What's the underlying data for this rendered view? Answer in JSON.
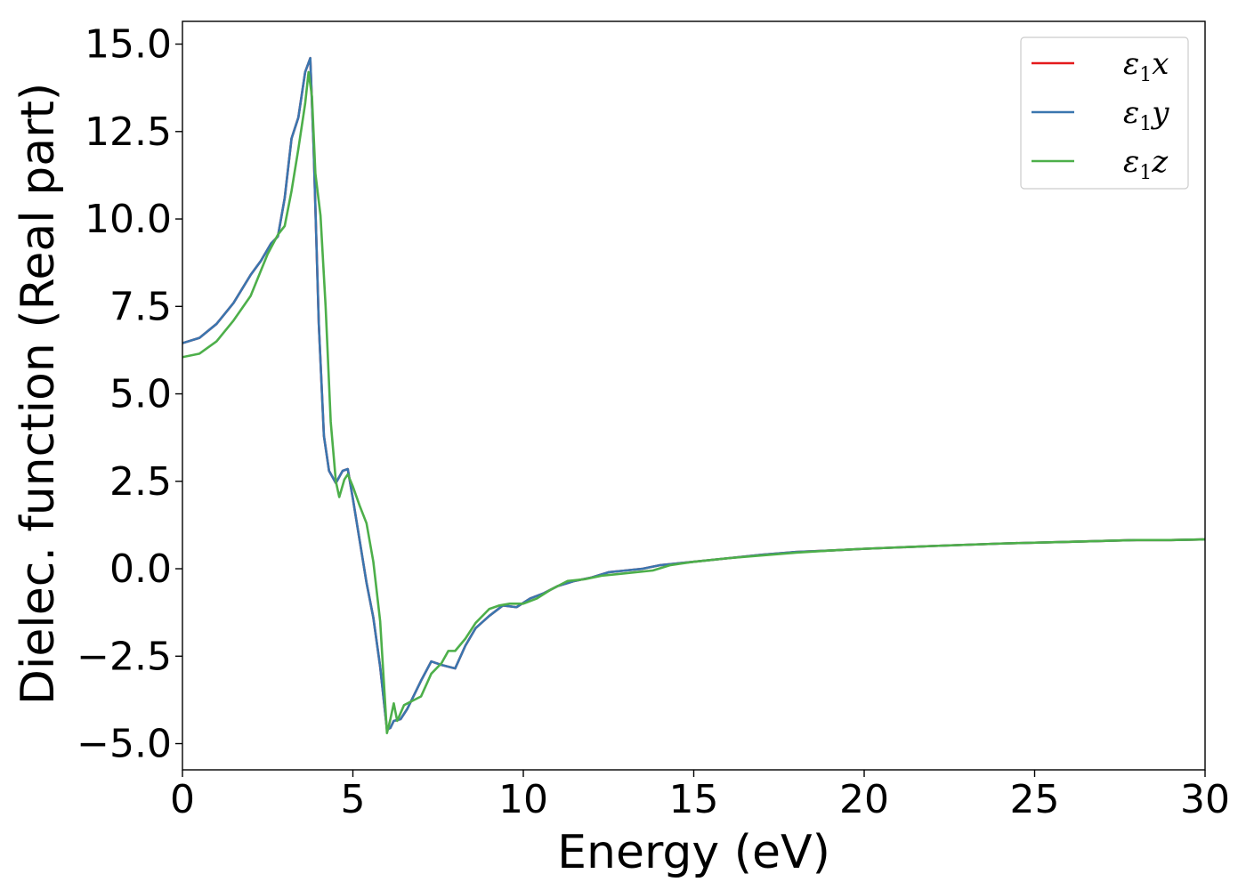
{
  "chart_data": {
    "type": "line",
    "xlabel": "Energy (eV)",
    "ylabel": "Dielec. function (Real part)",
    "xlim": [
      0,
      30
    ],
    "ylim": [
      -5.75,
      15.65
    ],
    "xticks": [
      0,
      5,
      10,
      15,
      20,
      25,
      30
    ],
    "xtick_labels": [
      "0",
      "5",
      "10",
      "15",
      "20",
      "25",
      "30"
    ],
    "yticks": [
      -5.0,
      -2.5,
      0.0,
      2.5,
      5.0,
      7.5,
      10.0,
      12.5,
      15.0
    ],
    "ytick_labels": [
      "−5.0",
      "−2.5",
      "0.0",
      "2.5",
      "5.0",
      "7.5",
      "10.0",
      "12.5",
      "15.0"
    ],
    "grid": false,
    "legend_position": "top-right",
    "series": [
      {
        "name": "ε1x",
        "legend_base": "ε",
        "legend_sub": "1",
        "legend_var": "x",
        "color": "#e41a1c",
        "x": [
          0,
          0.5,
          1.0,
          1.5,
          2.0,
          2.3,
          2.6,
          2.8,
          3.0,
          3.2,
          3.4,
          3.6,
          3.75,
          3.85,
          4.0,
          4.15,
          4.3,
          4.5,
          4.7,
          4.85,
          5.0,
          5.2,
          5.4,
          5.6,
          5.8,
          6.0,
          6.1,
          6.2,
          6.4,
          6.6,
          6.8,
          7.0,
          7.3,
          7.6,
          8.0,
          8.3,
          8.6,
          9.0,
          9.4,
          9.8,
          10.2,
          10.6,
          11.0,
          11.5,
          12.0,
          12.5,
          13.0,
          13.5,
          14.0,
          14.5,
          15.0,
          16.0,
          17.0,
          18.0,
          19.0,
          20.0,
          22.0,
          24.0,
          26.0,
          28.0,
          29.0,
          30.0
        ],
        "values": [
          6.45,
          6.6,
          7.0,
          7.6,
          8.4,
          8.8,
          9.3,
          9.5,
          10.6,
          12.3,
          12.9,
          14.2,
          14.6,
          12.0,
          7.0,
          3.8,
          2.8,
          2.45,
          2.8,
          2.85,
          2.0,
          0.8,
          -0.4,
          -1.4,
          -2.8,
          -4.6,
          -4.55,
          -4.35,
          -4.3,
          -4.0,
          -3.6,
          -3.2,
          -2.65,
          -2.75,
          -2.85,
          -2.2,
          -1.7,
          -1.35,
          -1.05,
          -1.1,
          -0.85,
          -0.7,
          -0.5,
          -0.35,
          -0.25,
          -0.1,
          -0.05,
          0.0,
          0.1,
          0.15,
          0.2,
          0.3,
          0.4,
          0.48,
          0.52,
          0.57,
          0.65,
          0.72,
          0.77,
          0.82,
          0.82,
          0.84
        ]
      },
      {
        "name": "ε1y",
        "legend_base": "ε",
        "legend_sub": "1",
        "legend_var": "y",
        "color": "#3a76af",
        "x": [
          0,
          0.5,
          1.0,
          1.5,
          2.0,
          2.3,
          2.6,
          2.8,
          3.0,
          3.2,
          3.4,
          3.6,
          3.75,
          3.85,
          4.0,
          4.15,
          4.3,
          4.5,
          4.7,
          4.85,
          5.0,
          5.2,
          5.4,
          5.6,
          5.8,
          6.0,
          6.1,
          6.2,
          6.4,
          6.6,
          6.8,
          7.0,
          7.3,
          7.6,
          8.0,
          8.3,
          8.6,
          9.0,
          9.4,
          9.8,
          10.2,
          10.6,
          11.0,
          11.5,
          12.0,
          12.5,
          13.0,
          13.5,
          14.0,
          14.5,
          15.0,
          16.0,
          17.0,
          18.0,
          19.0,
          20.0,
          22.0,
          24.0,
          26.0,
          28.0,
          29.0,
          30.0
        ],
        "values": [
          6.45,
          6.6,
          7.0,
          7.6,
          8.4,
          8.8,
          9.3,
          9.5,
          10.6,
          12.3,
          12.9,
          14.2,
          14.6,
          12.0,
          7.0,
          3.8,
          2.8,
          2.45,
          2.8,
          2.85,
          2.0,
          0.8,
          -0.4,
          -1.4,
          -2.8,
          -4.6,
          -4.55,
          -4.35,
          -4.3,
          -4.0,
          -3.6,
          -3.2,
          -2.65,
          -2.75,
          -2.85,
          -2.2,
          -1.7,
          -1.35,
          -1.05,
          -1.1,
          -0.85,
          -0.7,
          -0.5,
          -0.35,
          -0.25,
          -0.1,
          -0.05,
          0.0,
          0.1,
          0.15,
          0.2,
          0.3,
          0.4,
          0.48,
          0.52,
          0.57,
          0.65,
          0.72,
          0.77,
          0.82,
          0.82,
          0.84
        ]
      },
      {
        "name": "ε1z",
        "legend_base": "ε",
        "legend_sub": "1",
        "legend_var": "z",
        "color": "#4daf4a",
        "x": [
          0,
          0.5,
          1.0,
          1.5,
          2.0,
          2.5,
          2.8,
          3.0,
          3.2,
          3.4,
          3.6,
          3.7,
          3.8,
          3.9,
          4.05,
          4.2,
          4.35,
          4.5,
          4.6,
          4.75,
          4.85,
          5.0,
          5.2,
          5.4,
          5.6,
          5.8,
          6.0,
          6.1,
          6.2,
          6.3,
          6.5,
          6.8,
          7.0,
          7.3,
          7.6,
          7.8,
          8.0,
          8.3,
          8.6,
          9.0,
          9.3,
          9.6,
          10.0,
          10.4,
          10.8,
          11.3,
          11.8,
          12.3,
          12.8,
          13.3,
          13.8,
          14.3,
          15.0,
          16.0,
          17.0,
          18.0,
          19.0,
          20.0,
          22.0,
          24.0,
          26.0,
          28.0,
          29.0,
          30.0
        ],
        "values": [
          6.05,
          6.15,
          6.5,
          7.1,
          7.8,
          9.0,
          9.55,
          9.8,
          10.8,
          12.0,
          13.3,
          14.2,
          13.5,
          11.3,
          10.1,
          7.5,
          4.2,
          2.5,
          2.05,
          2.55,
          2.7,
          2.35,
          1.8,
          1.3,
          0.2,
          -1.5,
          -4.7,
          -4.3,
          -3.85,
          -4.35,
          -3.9,
          -3.75,
          -3.65,
          -3.0,
          -2.7,
          -2.35,
          -2.35,
          -2.0,
          -1.55,
          -1.15,
          -1.05,
          -1.0,
          -1.0,
          -0.85,
          -0.6,
          -0.35,
          -0.3,
          -0.2,
          -0.15,
          -0.1,
          -0.05,
          0.1,
          0.2,
          0.3,
          0.38,
          0.46,
          0.52,
          0.57,
          0.65,
          0.72,
          0.77,
          0.82,
          0.82,
          0.84
        ]
      }
    ]
  }
}
